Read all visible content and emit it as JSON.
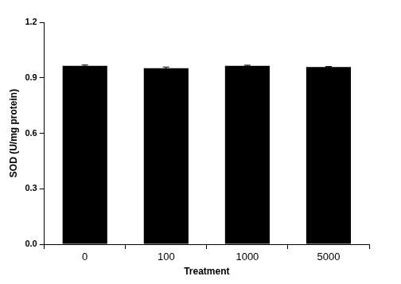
{
  "chart_data": {
    "type": "bar",
    "x_label": "Treatment",
    "y_label": "SOD (U/mg protein)",
    "categories": [
      "0",
      "100",
      "1000",
      "5000"
    ],
    "values": [
      0.965,
      0.952,
      0.965,
      0.958
    ],
    "errors": [
      0.004,
      0.006,
      0.003,
      0.003
    ],
    "color": "#000000",
    "ylim": [
      0,
      1.2
    ],
    "yticks": [
      {
        "value": 0,
        "label": "0.0"
      },
      0.3,
      0.6,
      0.9,
      1.2
    ],
    "grid": false
  }
}
